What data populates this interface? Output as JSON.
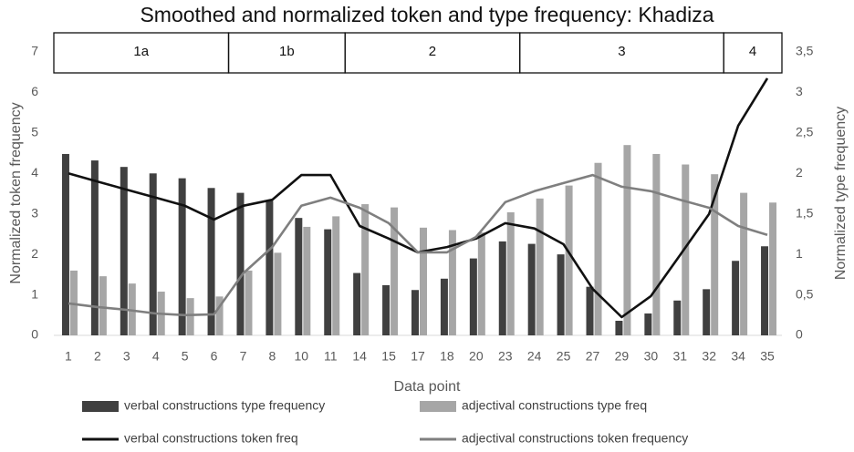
{
  "chart_data": {
    "type": "combo",
    "title": "Smoothed and normalized token and type frequency: Khadiza",
    "x_label": "Data point",
    "y_label": "Normalized token frequency",
    "y2_label": "Normalized type frequency",
    "categories": [
      "1",
      "2",
      "3",
      "4",
      "5",
      "6",
      "7",
      "8",
      "10",
      "11",
      "14",
      "15",
      "17",
      "18",
      "20",
      "23",
      "24",
      "25",
      "27",
      "29",
      "30",
      "31",
      "32",
      "34",
      "35"
    ],
    "ylim": [
      0,
      7
    ],
    "yticks": [
      0,
      1,
      2,
      3,
      4,
      5,
      6,
      7
    ],
    "y2lim": [
      0,
      3.5
    ],
    "y2ticks": [
      0,
      {
        "value": 0.5,
        "label": "0,5"
      },
      1,
      {
        "value": 1.5,
        "label": "1,5"
      },
      2,
      {
        "value": 2.5,
        "label": "2,5"
      },
      3,
      {
        "value": 3.5,
        "label": "3,5"
      }
    ],
    "phases": [
      {
        "label": "1a",
        "from": "1",
        "to": "6"
      },
      {
        "label": "1b",
        "from": "7",
        "to": "11"
      },
      {
        "label": "2",
        "from": "14",
        "to": "23"
      },
      {
        "label": "3",
        "from": "24",
        "to": "32"
      },
      {
        "label": "4",
        "from": "34",
        "to": "35"
      }
    ],
    "series": [
      {
        "name": "verbal constructions type frequency",
        "type": "bar",
        "axis": "y2",
        "color": "#404040",
        "values": [
          2.24,
          2.16,
          2.08,
          2.0,
          1.94,
          1.82,
          1.76,
          1.66,
          1.45,
          1.31,
          0.77,
          0.62,
          0.56,
          0.7,
          0.95,
          1.16,
          1.13,
          1.0,
          0.6,
          0.18,
          0.27,
          0.43,
          0.57,
          0.92,
          1.1
        ]
      },
      {
        "name": "adjectival constructions type freq",
        "type": "bar",
        "axis": "y2",
        "color": "#a6a6a6",
        "values": [
          0.8,
          0.73,
          0.64,
          0.54,
          0.46,
          0.48,
          0.8,
          1.02,
          1.34,
          1.47,
          1.62,
          1.58,
          1.33,
          1.3,
          1.27,
          1.52,
          1.69,
          1.85,
          2.13,
          2.35,
          2.24,
          2.11,
          1.99,
          1.76,
          1.64
        ]
      },
      {
        "name": "verbal constructions token freq",
        "type": "line",
        "axis": "y",
        "color": "#111111",
        "values": [
          4.0,
          3.8,
          3.6,
          3.4,
          3.2,
          2.86,
          3.2,
          3.35,
          3.96,
          3.96,
          2.7,
          2.39,
          2.05,
          2.18,
          2.39,
          2.77,
          2.64,
          2.25,
          1.15,
          0.45,
          0.97,
          1.98,
          3.0,
          5.18,
          6.35
        ]
      },
      {
        "name": "adjectival constructions token frequency",
        "type": "line",
        "axis": "y",
        "color": "#7f7f7f",
        "values": [
          0.79,
          0.7,
          0.63,
          0.54,
          0.5,
          0.52,
          1.53,
          2.18,
          3.2,
          3.4,
          3.15,
          2.77,
          2.05,
          2.05,
          2.43,
          3.29,
          3.56,
          3.76,
          3.96,
          3.67,
          3.56,
          3.35,
          3.15,
          2.7,
          2.48
        ]
      }
    ]
  }
}
